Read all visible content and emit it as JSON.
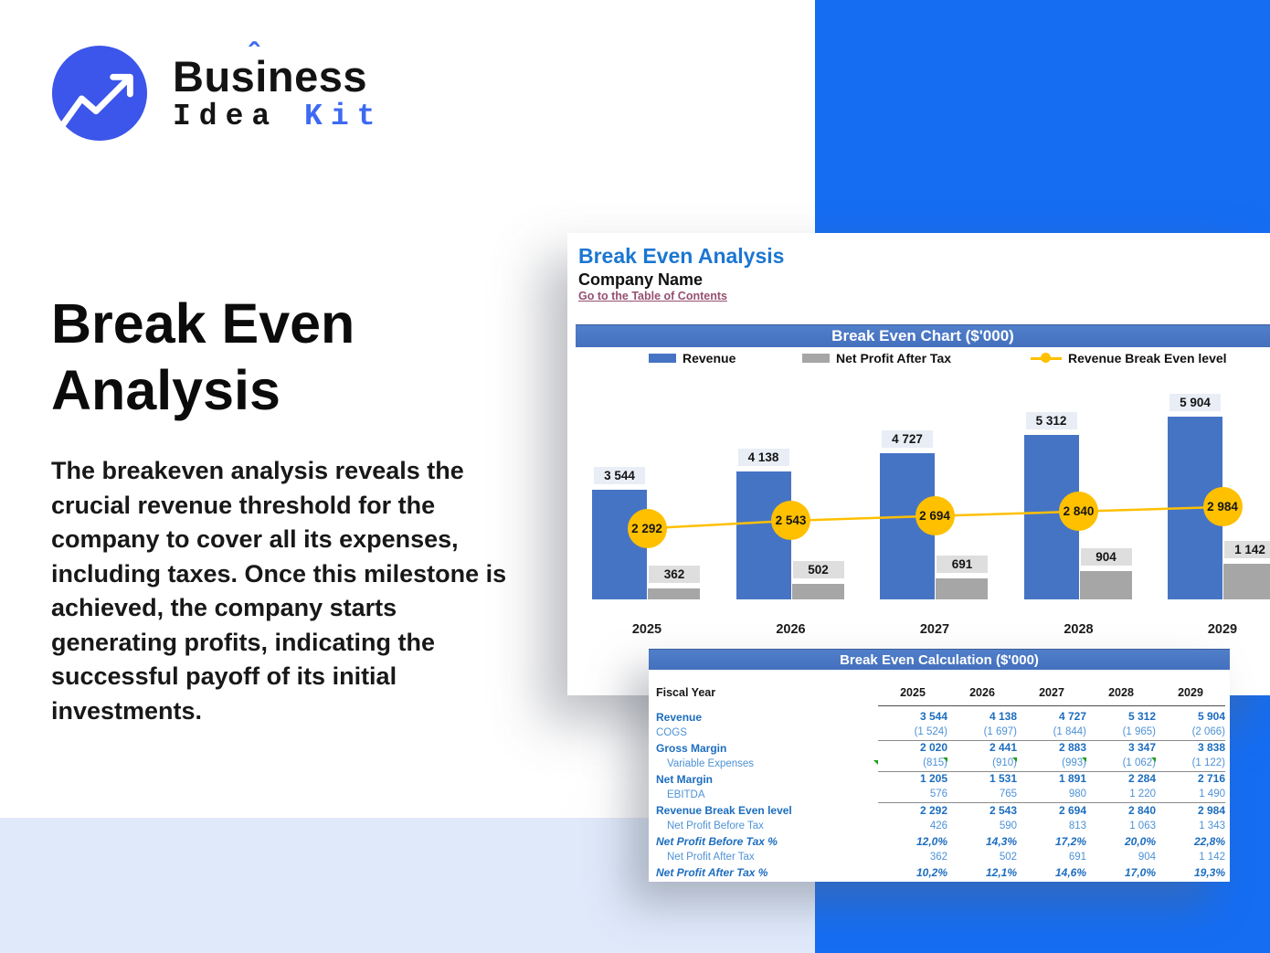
{
  "logo": {
    "top_pre": "Bus",
    "top_i": "i",
    "top_post": "ness",
    "caret": "ˆ",
    "bottom_black": "Idea",
    "bottom_blue": "Kit",
    "circle_color": "#3c55ea",
    "accent_color": "#3e6af2"
  },
  "hero": {
    "title_line1": "Break Even",
    "title_line2": "Analysis",
    "description": "The breakeven analysis reveals the crucial revenue threshold for the company to cover all its expenses, including taxes. Once this milestone is achieved, the company starts generating profits, indicating the successful payoff of its initial investments."
  },
  "sheet": {
    "title": "Break Even Analysis",
    "company": "Company Name",
    "toc_link": "Go to the Table of Contents",
    "chart_header": "Break Even Chart ($'000)",
    "table_header": "Break Even Calculation ($'000)"
  },
  "legend": [
    {
      "label": "Revenue",
      "color": "#4674c5",
      "type": "bar"
    },
    {
      "label": "Net Profit After Tax",
      "color": "#a6a6a6",
      "type": "bar"
    },
    {
      "label": "Revenue Break Even level",
      "color": "#ffc000",
      "type": "line"
    }
  ],
  "chart_data": {
    "type": "bar",
    "categories": [
      "2025",
      "2026",
      "2027",
      "2028",
      "2029"
    ],
    "series": [
      {
        "name": "Revenue",
        "type": "bar",
        "color": "#4674c5",
        "values": [
          3544,
          4138,
          4727,
          5312,
          5904
        ],
        "labels": [
          "3 544",
          "4 138",
          "4 727",
          "5 312",
          "5 904"
        ]
      },
      {
        "name": "Net Profit After Tax",
        "type": "bar",
        "color": "#a6a6a6",
        "values": [
          362,
          502,
          691,
          904,
          1142
        ],
        "labels": [
          "362",
          "502",
          "691",
          "904",
          "1 142"
        ]
      },
      {
        "name": "Revenue Break Even level",
        "type": "line",
        "color": "#ffc000",
        "values": [
          2292,
          2543,
          2694,
          2840,
          2984
        ],
        "labels": [
          "2 292",
          "2 543",
          "2 694",
          "2 840",
          "2 984"
        ]
      }
    ],
    "title": "Break Even Chart ($'000)",
    "xlabel": "",
    "ylabel": "",
    "ylim": [
      0,
      5904
    ],
    "grid": false,
    "legend_position": "top",
    "data_labels": true
  },
  "table": {
    "fiscal_year_label": "Fiscal Year",
    "years": [
      "2025",
      "2026",
      "2027",
      "2028",
      "2029"
    ],
    "rows": [
      {
        "label": "Revenue",
        "style": "b",
        "indent": false,
        "rule": false,
        "values": [
          "3 544",
          "4 138",
          "4 727",
          "5 312",
          "5 904"
        ]
      },
      {
        "label": "COGS",
        "style": "n",
        "indent": false,
        "rule": true,
        "values": [
          "(1 524)",
          "(1 697)",
          "(1 844)",
          "(1 965)",
          "(2 066)"
        ]
      },
      {
        "label": "Gross Margin",
        "style": "b",
        "indent": false,
        "rule": false,
        "values": [
          "2 020",
          "2 441",
          "2 883",
          "3 347",
          "3 838"
        ]
      },
      {
        "label": "Variable Expenses",
        "style": "n",
        "indent": true,
        "rule": true,
        "lead_flag": true,
        "flags": [
          1,
          1,
          1,
          1,
          0
        ],
        "values": [
          "(815)",
          "(910)",
          "(993)",
          "(1 062)",
          "(1 122)"
        ]
      },
      {
        "label": "Net Margin",
        "style": "b",
        "indent": false,
        "rule": false,
        "values": [
          "1 205",
          "1 531",
          "1 891",
          "2 284",
          "2 716"
        ]
      },
      {
        "label": "EBITDA",
        "style": "n",
        "indent": true,
        "rule": true,
        "values": [
          "576",
          "765",
          "980",
          "1 220",
          "1 490"
        ]
      },
      {
        "label": "Revenue Break Even level",
        "style": "b",
        "indent": false,
        "rule": false,
        "values": [
          "2 292",
          "2 543",
          "2 694",
          "2 840",
          "2 984"
        ]
      },
      {
        "label": "Net Profit Before Tax",
        "style": "n",
        "indent": true,
        "rule": false,
        "values": [
          "426",
          "590",
          "813",
          "1 063",
          "1 343"
        ]
      },
      {
        "label": "Net Profit Before Tax %",
        "style": "p",
        "indent": false,
        "rule": false,
        "values": [
          "12,0%",
          "14,3%",
          "17,2%",
          "20,0%",
          "22,8%"
        ]
      },
      {
        "label": "Net Profit After Tax",
        "style": "n",
        "indent": true,
        "rule": false,
        "values": [
          "362",
          "502",
          "691",
          "904",
          "1 142"
        ]
      },
      {
        "label": "Net Profit After Tax %",
        "style": "p",
        "indent": false,
        "rule": false,
        "values": [
          "10,2%",
          "12,1%",
          "14,6%",
          "17,0%",
          "19,3%"
        ]
      }
    ]
  },
  "colors": {
    "bg_right": "#156df2",
    "bg_band": "#dfe9fa",
    "header_bar": "#4a78c5",
    "bar_blue": "#4674c5",
    "bar_gray": "#a6a6a6",
    "breakeven_yellow": "#ffc000",
    "link": "#954f72",
    "sheet_title": "#1b76d2",
    "table_bold_blue": "#1c6dbf",
    "table_light_blue": "#4e92d6"
  }
}
